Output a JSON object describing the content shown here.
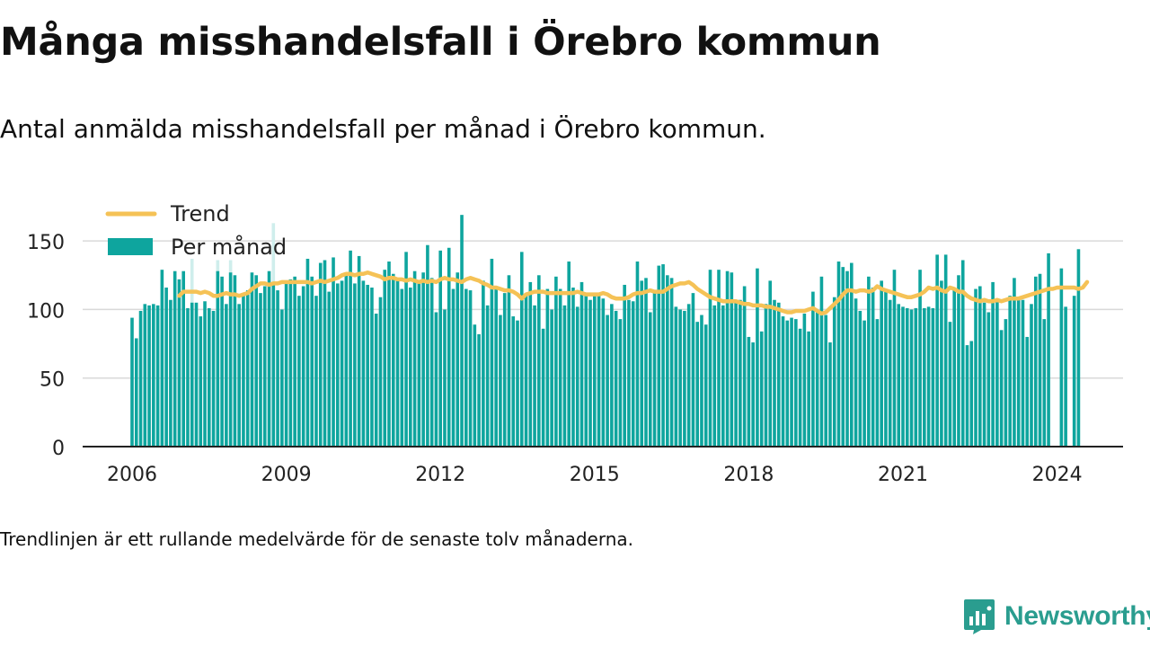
{
  "page": {
    "title": "Många misshandelsfall i Örebro kommun",
    "subtitle": "Antal anmälda misshandelsfall per månad i Örebro kommun.",
    "footnote": "Trendlinjen är ett rullande medelvärde för de senaste tolv månaderna.",
    "brand": "Newsworthy",
    "brand_icon": "newsworthy-logo-icon"
  },
  "colors": {
    "bars": "#0ea59e",
    "bars_faded": "#cfeeec",
    "trend": "#f5c256",
    "grid": "#d9d9d9",
    "axis": "#222222",
    "brand": "#2a9d8f"
  },
  "chart_data": {
    "type": "bar",
    "x_unit": "month",
    "start_month": "2006-01",
    "legend": [
      {
        "name": "Trend",
        "kind": "line"
      },
      {
        "name": "Per månad",
        "kind": "bar"
      }
    ],
    "legend_position": "top-left",
    "grid": true,
    "ylim": [
      0,
      175
    ],
    "yticks": [
      0,
      50,
      100,
      150
    ],
    "xticks": [
      2006,
      2009,
      2012,
      2015,
      2018,
      2021,
      2024
    ],
    "faded_background_bars": [
      {
        "date": "2007-03",
        "value": 137
      },
      {
        "date": "2007-09",
        "value": 136
      },
      {
        "date": "2007-12",
        "value": 136
      },
      {
        "date": "2008-10",
        "value": 163
      }
    ],
    "series": [
      {
        "name": "Per månad",
        "kind": "bar",
        "values": [
          94,
          79,
          99,
          104,
          103,
          104,
          103,
          129,
          116,
          107,
          128,
          122,
          128,
          101,
          105,
          105,
          95,
          106,
          101,
          99,
          128,
          124,
          104,
          127,
          125,
          104,
          111,
          114,
          127,
          125,
          112,
          117,
          128,
          118,
          114,
          100,
          119,
          122,
          124,
          110,
          117,
          137,
          124,
          110,
          134,
          136,
          113,
          138,
          119,
          121,
          125,
          143,
          119,
          139,
          121,
          118,
          116,
          97,
          109,
          129,
          135,
          126,
          121,
          115,
          142,
          116,
          128,
          119,
          127,
          147,
          123,
          98,
          143,
          100,
          145,
          115,
          127,
          169,
          115,
          114,
          89,
          82,
          121,
          103,
          137,
          116,
          96,
          112,
          125,
          95,
          92,
          142,
          112,
          120,
          103,
          125,
          86,
          115,
          100,
          124,
          115,
          103,
          135,
          116,
          102,
          120,
          112,
          107,
          110,
          112,
          108,
          96,
          104,
          99,
          93,
          118,
          107,
          106,
          135,
          121,
          123,
          98,
          114,
          132,
          133,
          125,
          123,
          102,
          100,
          99,
          104,
          112,
          91,
          96,
          89,
          129,
          103,
          129,
          103,
          128,
          127,
          105,
          107,
          117,
          80,
          76,
          130,
          84,
          104,
          121,
          107,
          105,
          95,
          92,
          94,
          93,
          86,
          97,
          84,
          113,
          99,
          124,
          96,
          76,
          109,
          135,
          131,
          128,
          134,
          108,
          99,
          92,
          124,
          116,
          93,
          121,
          114,
          107,
          129,
          104,
          102,
          101,
          100,
          101,
          129,
          101,
          102,
          101,
          140,
          121,
          140,
          91,
          115,
          125,
          136,
          74,
          77,
          115,
          117,
          105,
          98,
          120,
          108,
          85,
          93,
          110,
          123,
          107,
          107,
          80,
          104,
          124,
          126,
          93,
          141,
          null,
          null,
          130,
          102,
          null,
          110,
          144
        ]
      },
      {
        "name": "Trend",
        "kind": "line",
        "values": [
          null,
          null,
          null,
          null,
          null,
          null,
          null,
          null,
          null,
          null,
          null,
          110,
          113,
          113,
          113,
          113,
          112,
          113,
          112,
          110,
          110,
          111,
          112,
          111,
          111,
          110,
          111,
          112,
          115,
          117,
          119,
          119,
          118,
          119,
          119,
          120,
          120,
          120,
          120,
          120,
          120,
          120,
          119,
          120,
          121,
          120,
          121,
          122,
          123,
          125,
          126,
          126,
          125,
          126,
          126,
          127,
          126,
          125,
          124,
          122,
          123,
          123,
          122,
          122,
          121,
          122,
          121,
          120,
          121,
          120,
          121,
          120,
          122,
          123,
          122,
          122,
          121,
          120,
          122,
          123,
          122,
          121,
          119,
          118,
          116,
          116,
          115,
          114,
          114,
          113,
          111,
          108,
          111,
          112,
          113,
          113,
          113,
          112,
          112,
          112,
          112,
          112,
          112,
          112,
          113,
          112,
          111,
          111,
          111,
          111,
          112,
          111,
          109,
          108,
          108,
          108,
          109,
          111,
          112,
          112,
          113,
          114,
          113,
          113,
          113,
          115,
          117,
          118,
          119,
          119,
          120,
          118,
          115,
          113,
          111,
          109,
          108,
          107,
          106,
          106,
          106,
          106,
          105,
          104,
          104,
          103,
          103,
          103,
          102,
          102,
          101,
          100,
          99,
          98,
          98,
          99,
          99,
          99,
          100,
          101,
          99,
          97,
          98,
          101,
          104,
          107,
          111,
          114,
          114,
          113,
          114,
          114,
          113,
          114,
          117,
          115,
          114,
          113,
          112,
          111,
          110,
          109,
          109,
          110,
          111,
          113,
          116,
          115,
          116,
          114,
          113,
          116,
          115,
          113,
          113,
          110,
          108,
          107,
          106,
          107,
          106,
          106,
          107,
          106,
          107,
          108,
          108,
          108,
          109,
          110,
          111,
          112,
          113,
          114,
          115,
          115,
          116,
          116,
          116,
          116,
          116,
          115,
          116,
          120
        ]
      }
    ]
  }
}
